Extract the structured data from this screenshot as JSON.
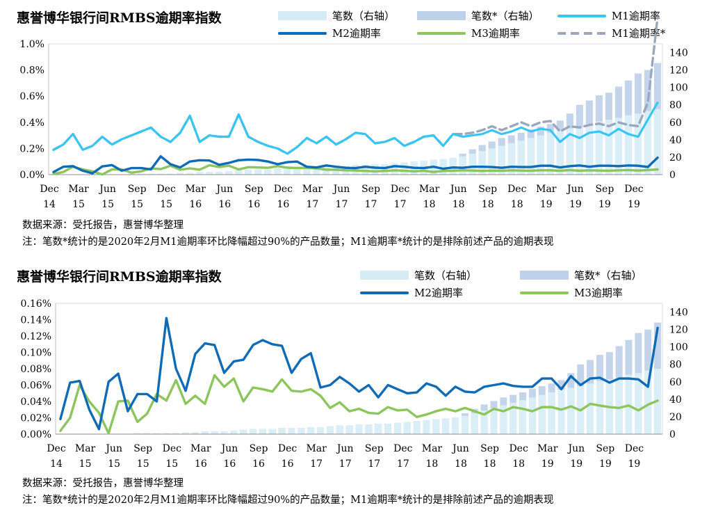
{
  "chart_data": [
    {
      "type": "bar+line",
      "title": "惠誉博华银行间RMBS逾期率指数",
      "legend_labels": [
        "笔数（右轴）",
        "笔数*（右轴）",
        "M1逾期率",
        "M2逾期率",
        "M3逾期率",
        "M1逾期率*"
      ],
      "x_tick_labels": [
        [
          "Dec",
          "14"
        ],
        [
          "Mar",
          "15"
        ],
        [
          "Jun",
          "15"
        ],
        [
          "Sep",
          "15"
        ],
        [
          "Dec",
          "15"
        ],
        [
          "Mar",
          "16"
        ],
        [
          "Jun",
          "16"
        ],
        [
          "Sep",
          "16"
        ],
        [
          "Dec",
          "16"
        ],
        [
          "Mar",
          "17"
        ],
        [
          "Jun",
          "17"
        ],
        [
          "Sep",
          "17"
        ],
        [
          "Dec",
          "17"
        ],
        [
          "Mar",
          "18"
        ],
        [
          "Jun",
          "18"
        ],
        [
          "Sep",
          "18"
        ],
        [
          "Dec",
          "18"
        ],
        [
          "Mar",
          "19"
        ],
        [
          "Jun",
          "19"
        ],
        [
          "Sep",
          "19"
        ],
        [
          "Dec",
          "19"
        ]
      ],
      "y_left_ticks": [
        "0.0%",
        "0.2%",
        "0.4%",
        "0.6%",
        "0.8%",
        "1.0%"
      ],
      "y_left_range": [
        0,
        1.0
      ],
      "y_right_ticks": [
        "0",
        "20",
        "40",
        "60",
        "80",
        "100",
        "120",
        "140"
      ],
      "y_right_range": [
        0,
        150
      ],
      "n_months": 63,
      "bars_count": [
        0,
        0,
        0,
        0,
        0,
        0,
        0,
        0,
        1,
        1,
        1,
        1,
        1,
        2,
        2,
        3,
        3,
        3,
        4,
        5,
        6,
        6,
        6,
        7,
        7,
        7,
        8,
        8,
        9,
        10,
        10,
        11,
        11,
        12,
        12,
        13,
        14,
        15,
        16,
        17,
        18,
        19,
        21,
        24,
        27,
        30,
        33,
        36,
        39,
        42,
        45,
        48,
        51,
        53,
        55,
        58,
        61,
        63,
        65,
        68,
        70,
        73,
        75
      ],
      "bars_count_star": [
        0,
        0,
        0,
        0,
        0,
        0,
        0,
        0,
        1,
        1,
        1,
        1,
        1,
        2,
        2,
        3,
        3,
        3,
        4,
        5,
        6,
        6,
        6,
        7,
        7,
        7,
        8,
        8,
        9,
        10,
        10,
        11,
        11,
        12,
        12,
        13,
        14,
        15,
        16,
        17,
        18,
        19,
        24,
        29,
        34,
        38,
        42,
        45,
        48,
        52,
        55,
        58,
        62,
        70,
        80,
        85,
        91,
        94,
        101,
        108,
        116,
        120,
        128
      ],
      "series": [
        {
          "name": "M1逾期率",
          "values": [
            0.19,
            0.23,
            0.31,
            0.19,
            0.22,
            0.29,
            0.23,
            0.27,
            0.3,
            0.33,
            0.36,
            0.29,
            0.25,
            0.32,
            0.45,
            0.25,
            0.3,
            0.29,
            0.29,
            0.46,
            0.29,
            0.25,
            0.22,
            0.2,
            0.16,
            0.21,
            0.28,
            0.24,
            0.29,
            0.23,
            0.27,
            0.32,
            0.31,
            0.24,
            0.25,
            0.28,
            0.22,
            0.25,
            0.29,
            0.3,
            0.22,
            0.31,
            0.29,
            0.3,
            0.31,
            0.34,
            0.31,
            0.33,
            0.36,
            0.33,
            0.35,
            0.34,
            0.25,
            0.31,
            0.28,
            0.32,
            0.33,
            0.3,
            0.35,
            0.31,
            0.29,
            0.42,
            0.55
          ]
        },
        {
          "name": "M2逾期率",
          "values": [
            0.02,
            0.06,
            0.065,
            0.03,
            0.01,
            0.063,
            0.073,
            0.03,
            0.05,
            0.05,
            0.04,
            0.14,
            0.08,
            0.055,
            0.1,
            0.11,
            0.108,
            0.075,
            0.09,
            0.11,
            0.115,
            0.112,
            0.1,
            0.08,
            0.095,
            0.1,
            0.06,
            0.055,
            0.07,
            0.06,
            0.052,
            0.05,
            0.06,
            0.053,
            0.05,
            0.065,
            0.06,
            0.052,
            0.05,
            0.06,
            0.045,
            0.055,
            0.052,
            0.06,
            0.06,
            0.058,
            0.052,
            0.06,
            0.058,
            0.058,
            0.068,
            0.068,
            0.055,
            0.065,
            0.07,
            0.06,
            0.068,
            0.068,
            0.065,
            0.07,
            0.068,
            0.058,
            0.13
          ]
        },
        {
          "name": "M3逾期率",
          "values": [
            0.005,
            0.02,
            0.06,
            0.04,
            0.025,
            0.001,
            0.04,
            0.04,
            0.015,
            0.025,
            0.048,
            0.042,
            0.068,
            0.037,
            0.048,
            0.038,
            0.072,
            0.058,
            0.068,
            0.04,
            0.057,
            0.055,
            0.052,
            0.065,
            0.053,
            0.051,
            0.052,
            0.048,
            0.038,
            0.038,
            0.033,
            0.032,
            0.028,
            0.025,
            0.028,
            0.033,
            0.03,
            0.025,
            0.03,
            0.02,
            0.028,
            0.03,
            0.033,
            0.031,
            0.028,
            0.031,
            0.03,
            0.033,
            0.031,
            0.03,
            0.033,
            0.033,
            0.03,
            0.035,
            0.03,
            0.033,
            0.031,
            0.03,
            0.033,
            0.035,
            0.031,
            0.035,
            0.04
          ]
        },
        {
          "name": "M1逾期率*",
          "values": [
            0.19,
            0.23,
            0.31,
            0.19,
            0.22,
            0.29,
            0.23,
            0.27,
            0.3,
            0.33,
            0.36,
            0.29,
            0.25,
            0.32,
            0.45,
            0.25,
            0.3,
            0.29,
            0.29,
            0.46,
            0.29,
            0.25,
            0.22,
            0.2,
            0.16,
            0.21,
            0.28,
            0.24,
            0.29,
            0.23,
            0.27,
            0.32,
            0.31,
            0.24,
            0.25,
            0.28,
            0.22,
            0.25,
            0.29,
            0.3,
            0.22,
            0.31,
            0.31,
            0.32,
            0.34,
            0.37,
            0.34,
            0.37,
            0.4,
            0.37,
            0.4,
            0.41,
            0.33,
            0.37,
            0.36,
            0.38,
            0.39,
            0.37,
            0.4,
            0.38,
            0.37,
            0.55,
            1.2
          ]
        }
      ],
      "source_note": "数据来源：受托报告，惠誉博华整理",
      "footnote": "注：笔数*统计的是2020年2月M1逾期率环比降幅超过90%的产品数量；M1逾期率*统计的是排除前述产品的逾期表现"
    },
    {
      "type": "bar+line",
      "title": "惠誉博华银行间RMBS逾期率指数",
      "legend_labels": [
        "笔数（右轴）",
        "笔数*（右轴）",
        "M2逾期率",
        "M3逾期率"
      ],
      "x_tick_labels": [
        [
          "Dec",
          "14"
        ],
        [
          "Mar",
          "15"
        ],
        [
          "Jun",
          "15"
        ],
        [
          "Sep",
          "15"
        ],
        [
          "Dec",
          "15"
        ],
        [
          "Mar",
          "16"
        ],
        [
          "Jun",
          "16"
        ],
        [
          "Sep",
          "16"
        ],
        [
          "Dec",
          "16"
        ],
        [
          "Mar",
          "17"
        ],
        [
          "Jun",
          "17"
        ],
        [
          "Sep",
          "17"
        ],
        [
          "Dec",
          "17"
        ],
        [
          "Mar",
          "18"
        ],
        [
          "Jun",
          "18"
        ],
        [
          "Sep",
          "18"
        ],
        [
          "Dec",
          "18"
        ],
        [
          "Mar",
          "19"
        ],
        [
          "Jun",
          "19"
        ],
        [
          "Sep",
          "19"
        ],
        [
          "Dec",
          "19"
        ]
      ],
      "y_left_ticks": [
        "0.00%",
        "0.02%",
        "0.04%",
        "0.06%",
        "0.08%",
        "0.10%",
        "0.12%",
        "0.14%",
        "0.16%"
      ],
      "y_left_range": [
        0,
        0.16
      ],
      "y_right_ticks": [
        "0",
        "20",
        "40",
        "60",
        "80",
        "100",
        "120",
        "140"
      ],
      "y_right_range": [
        0,
        150
      ],
      "n_months": 63,
      "bars_count": [
        0,
        0,
        0,
        0,
        0,
        0,
        0,
        0,
        1,
        1,
        1,
        1,
        1,
        2,
        2,
        3,
        3,
        3,
        4,
        5,
        6,
        6,
        6,
        7,
        7,
        7,
        8,
        8,
        9,
        10,
        10,
        11,
        11,
        12,
        12,
        13,
        14,
        15,
        16,
        17,
        18,
        19,
        21,
        24,
        27,
        30,
        33,
        36,
        39,
        42,
        45,
        48,
        51,
        53,
        55,
        58,
        61,
        63,
        65,
        68,
        70,
        73,
        75
      ],
      "bars_count_star": [
        0,
        0,
        0,
        0,
        0,
        0,
        0,
        0,
        1,
        1,
        1,
        1,
        1,
        2,
        2,
        3,
        3,
        3,
        4,
        5,
        6,
        6,
        6,
        7,
        7,
        7,
        8,
        8,
        9,
        10,
        10,
        11,
        11,
        12,
        12,
        13,
        14,
        15,
        16,
        17,
        18,
        19,
        24,
        29,
        34,
        38,
        42,
        45,
        48,
        52,
        55,
        58,
        62,
        70,
        80,
        85,
        91,
        94,
        101,
        108,
        116,
        120,
        128
      ],
      "series": [
        {
          "name": "M2逾期率",
          "values": [
            0.0185,
            0.063,
            0.065,
            0.03,
            0.006,
            0.064,
            0.074,
            0.028,
            0.049,
            0.049,
            0.04,
            0.142,
            0.08,
            0.053,
            0.098,
            0.111,
            0.109,
            0.075,
            0.089,
            0.091,
            0.109,
            0.115,
            0.11,
            0.108,
            0.075,
            0.092,
            0.099,
            0.057,
            0.06,
            0.07,
            0.062,
            0.052,
            0.06,
            0.045,
            0.06,
            0.055,
            0.05,
            0.051,
            0.062,
            0.058,
            0.047,
            0.058,
            0.052,
            0.051,
            0.058,
            0.06,
            0.062,
            0.059,
            0.058,
            0.058,
            0.068,
            0.068,
            0.055,
            0.071,
            0.06,
            0.068,
            0.069,
            0.063,
            0.068,
            0.068,
            0.067,
            0.058,
            0.13
          ]
        },
        {
          "name": "M3逾期率",
          "values": [
            0.004,
            0.02,
            0.06,
            0.04,
            0.026,
            0.001,
            0.04,
            0.041,
            0.015,
            0.025,
            0.049,
            0.041,
            0.066,
            0.037,
            0.047,
            0.037,
            0.072,
            0.058,
            0.068,
            0.04,
            0.057,
            0.055,
            0.052,
            0.067,
            0.053,
            0.052,
            0.055,
            0.047,
            0.032,
            0.039,
            0.028,
            0.031,
            0.026,
            0.025,
            0.033,
            0.029,
            0.03,
            0.021,
            0.024,
            0.028,
            0.031,
            0.028,
            0.032,
            0.028,
            0.024,
            0.031,
            0.028,
            0.033,
            0.031,
            0.028,
            0.033,
            0.033,
            0.03,
            0.034,
            0.029,
            0.037,
            0.035,
            0.033,
            0.032,
            0.035,
            0.029,
            0.036,
            0.041
          ]
        }
      ],
      "source_note": "数据来源：受托报告，惠誉博华整理",
      "footnote": "注：笔数*统计的是2020年2月M1逾期率环比降幅超过90%的产品数量；M1逾期率*统计的是排除前述产品的逾期表现"
    }
  ]
}
